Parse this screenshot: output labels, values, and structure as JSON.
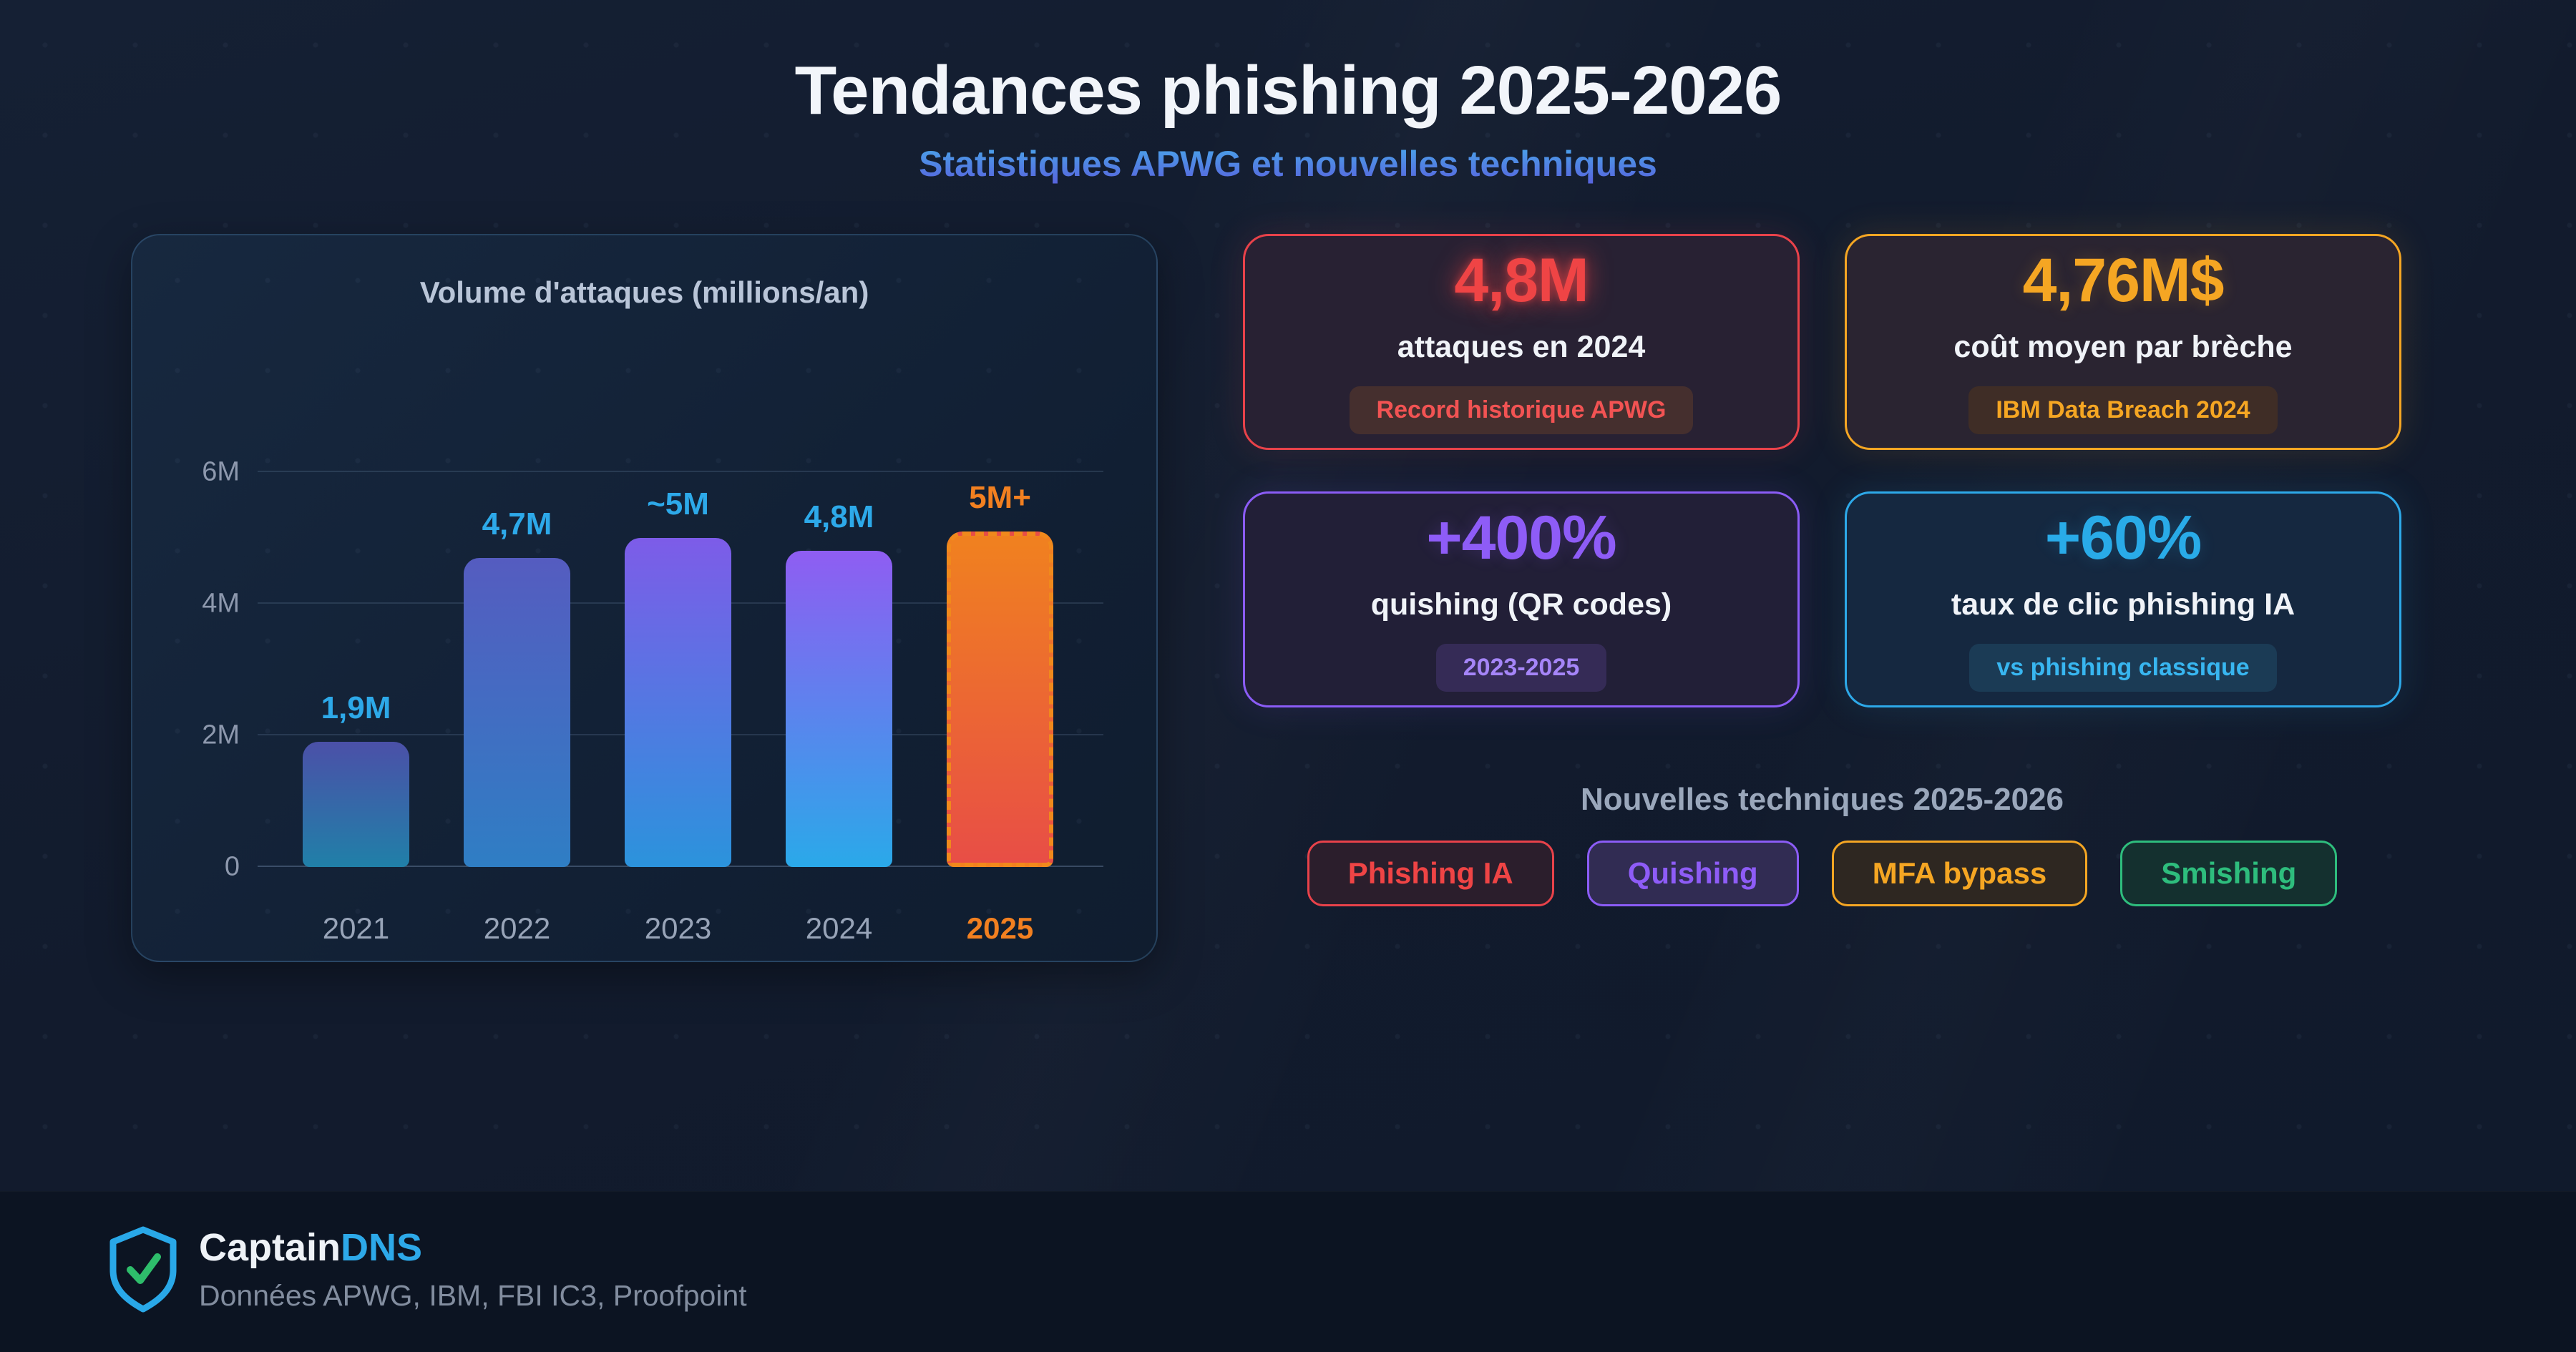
{
  "header": {
    "title": "Tendances phishing 2025-2026",
    "subtitle": "Statistiques APWG et nouvelles techniques",
    "subtitle_color_top": "#4aa2e9",
    "subtitle_color_bottom": "#5765de"
  },
  "chart_data": {
    "type": "bar",
    "title": "Volume d'attaques (millions/an)",
    "categories": [
      "2021",
      "2022",
      "2023",
      "2024",
      "2025"
    ],
    "values": [
      1.9,
      4.7,
      5.0,
      4.8,
      5.1
    ],
    "value_labels": [
      "1,9M",
      "4,7M",
      "~5M",
      "4,8M",
      "5M+"
    ],
    "xlabel": "",
    "ylabel": "",
    "ylim": [
      0,
      6
    ],
    "yticks": [
      {
        "label": "0",
        "value": 0
      },
      {
        "label": "2M",
        "value": 2
      },
      {
        "label": "4M",
        "value": 4
      },
      {
        "label": "6M",
        "value": 6
      }
    ],
    "grid": true,
    "legend": false,
    "bar_styles": [
      {
        "top": "#4b50a8",
        "bottom": "#2080a8",
        "label_color": "#2da9e9",
        "category_color": "#98a4b8",
        "dashed": false
      },
      {
        "top": "#555cc0",
        "bottom": "#2f7ec4",
        "label_color": "#2da9e9",
        "category_color": "#98a4b8",
        "dashed": false
      },
      {
        "top": "#7d5ce8",
        "bottom": "#2b93dc",
        "label_color": "#2da9e9",
        "category_color": "#98a4b8",
        "dashed": false
      },
      {
        "top": "#8f5df2",
        "bottom": "#2aa9e9",
        "label_color": "#2da9e9",
        "category_color": "#98a4b8",
        "dashed": false
      },
      {
        "top": "#f0811f",
        "bottom": "#e84e46",
        "label_color": "#f28020",
        "category_color": "#f28020",
        "dashed": true,
        "border_color": "#f0891c"
      }
    ]
  },
  "stat_cards": [
    {
      "value": "4,8M",
      "label": "attaques en 2024",
      "badge": "Record historique APWG",
      "accent": "#ef4445",
      "border": "#e8424a",
      "card_bg": "#282133",
      "badge_bg": "#452f2e",
      "badge_color": "#f25353",
      "glow": true
    },
    {
      "value": "4,76M$",
      "label": "coût moyen par brèche",
      "badge": "IBM Data Breach 2024",
      "accent": "#f5a623",
      "border": "#f5a623",
      "card_bg": "#2a2431",
      "badge_bg": "#3f2d26",
      "badge_color": "#f5a623",
      "glow": false
    },
    {
      "value": "+400%",
      "label": "quishing (QR codes)",
      "badge": "2023-2025",
      "accent": "#8e5cf7",
      "border": "#8b5cf6",
      "card_bg": "#221f37",
      "badge_bg": "#352b56",
      "badge_color": "#a585f8",
      "glow": false
    },
    {
      "value": "+60%",
      "label": "taux de clic phishing IA",
      "badge": "vs phishing classique",
      "accent": "#29abe8",
      "border": "#2da9e9",
      "card_bg": "#152840",
      "badge_bg": "#1b3b55",
      "badge_color": "#38b6f0",
      "glow": false
    }
  ],
  "techniques": {
    "title": "Nouvelles techniques 2025-2026",
    "tags": [
      {
        "label": "Phishing IA",
        "color": "#ef4445",
        "border": "#e8424a",
        "bg": "#2b1e2c"
      },
      {
        "label": "Quishing",
        "color": "#8e5cf7",
        "border": "#8b5cf6",
        "bg": "#312c53"
      },
      {
        "label": "MFA bypass",
        "color": "#f5a623",
        "border": "#f5a623",
        "bg": "#2e2721"
      },
      {
        "label": "Smishing",
        "color": "#2ebd7d",
        "border": "#2ebd7d",
        "bg": "#14302f"
      }
    ]
  },
  "footer": {
    "brand_first": "Captain",
    "brand_second": "DNS",
    "tagline": "Données APWG, IBM, FBI IC3, Proofpoint",
    "shield_color": "#29a8e8",
    "check_color": "#2ebd6b"
  }
}
